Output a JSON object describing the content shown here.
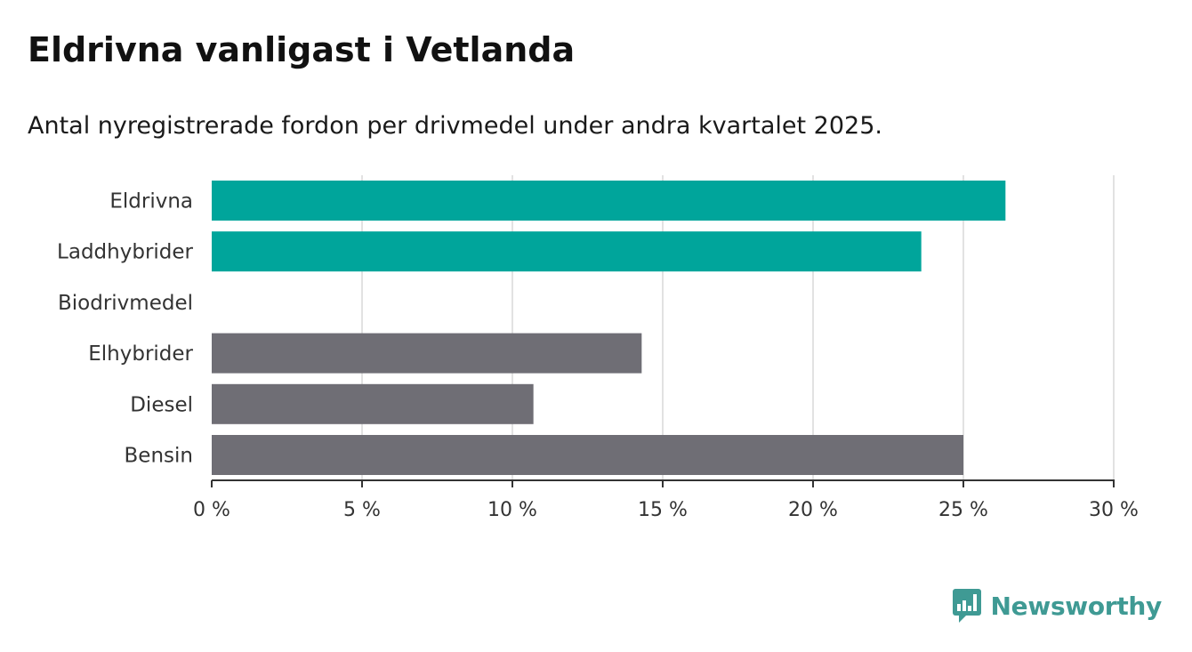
{
  "title": "Eldrivna vanligast i Vetlanda",
  "subtitle": "Antal nyregistrerade fordon per drivmedel under andra kvartalet 2025.",
  "brand": "Newsworthy",
  "colors": {
    "highlight": "#00a59b",
    "default": "#6f6e75",
    "grid": "#d9d9d9",
    "axis": "#333333",
    "brand": "#3f9a94"
  },
  "chart_data": {
    "type": "bar",
    "orientation": "horizontal",
    "categories": [
      "Eldrivna",
      "Laddhybrider",
      "Biodrivmedel",
      "Elhybrider",
      "Diesel",
      "Bensin"
    ],
    "values": [
      26.4,
      23.6,
      0,
      14.3,
      10.7,
      25.0
    ],
    "highlighted": [
      true,
      true,
      true,
      false,
      false,
      false
    ],
    "xlim": [
      0,
      30
    ],
    "ticks": [
      0,
      5,
      10,
      15,
      20,
      25,
      30
    ],
    "tick_labels": [
      "0 %",
      "5 %",
      "10 %",
      "15 %",
      "20 %",
      "25 %",
      "30 %"
    ],
    "grid": true
  }
}
